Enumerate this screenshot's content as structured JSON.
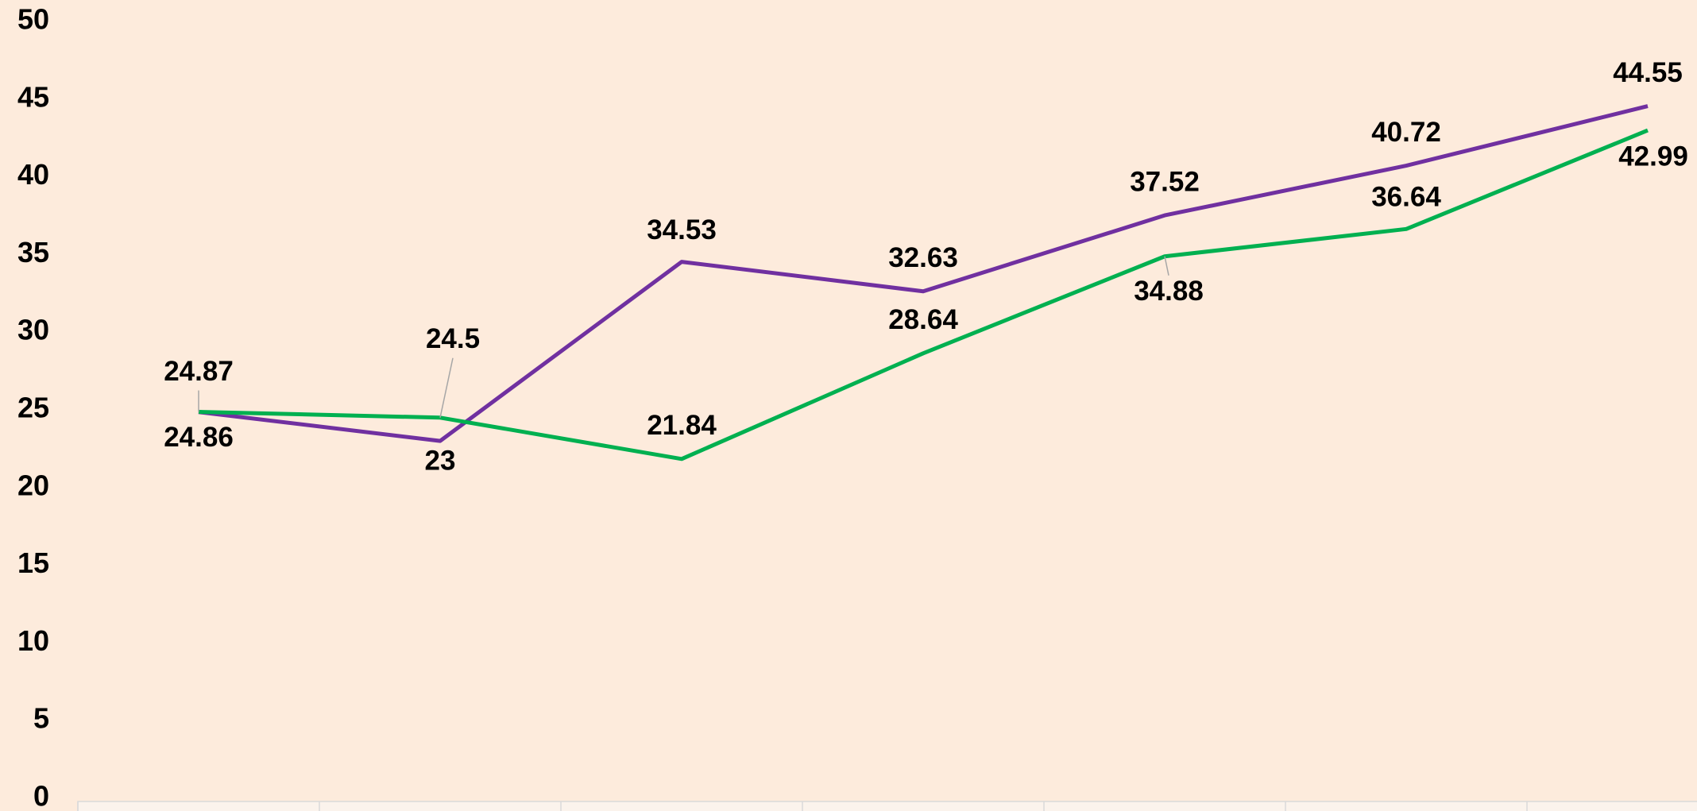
{
  "chart_data": {
    "type": "line",
    "categories": [
      null,
      null,
      null,
      null,
      null,
      null,
      null
    ],
    "series": [
      {
        "color": "#7030a0",
        "values": [
          24.86,
          23,
          34.53,
          32.63,
          37.52,
          40.72,
          44.55
        ]
      },
      {
        "color": "#00b050",
        "values": [
          24.87,
          24.5,
          21.84,
          28.64,
          34.88,
          36.64,
          42.99
        ]
      }
    ],
    "ylim": [
      0,
      50
    ],
    "yticks": [
      0,
      5,
      10,
      15,
      20,
      25,
      30,
      35,
      40,
      45,
      50
    ],
    "grid": false
  }
}
